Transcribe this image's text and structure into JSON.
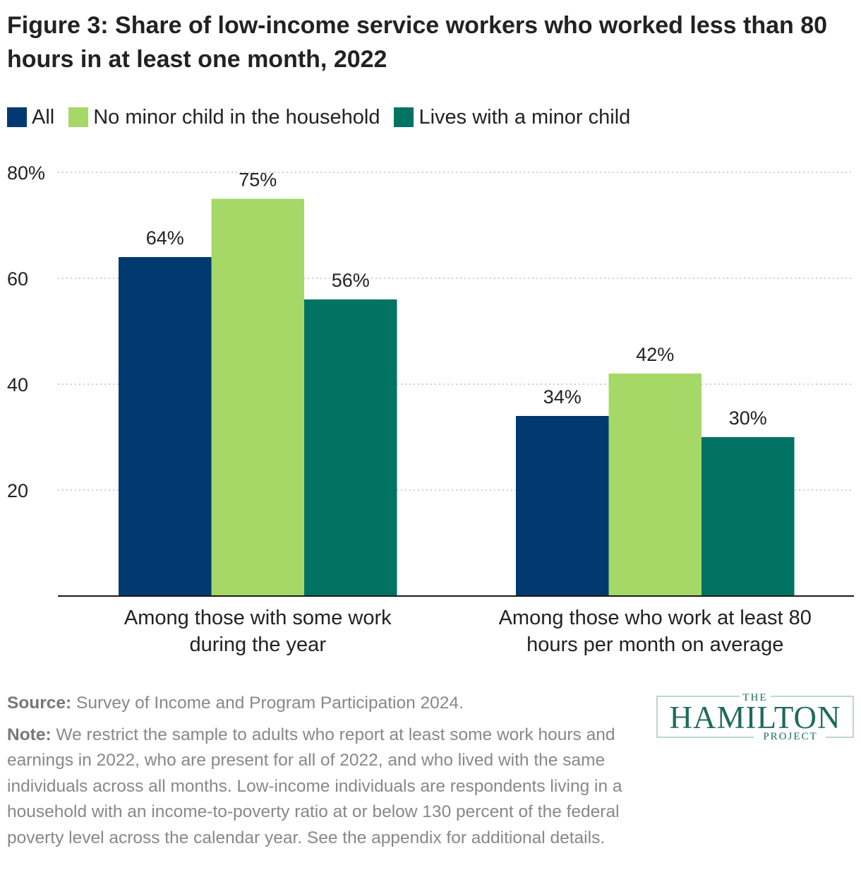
{
  "title": "Figure 3: Share of low-income service workers who worked less than 80 hours in at least one month, 2022",
  "legend": [
    {
      "label": "All",
      "color": "#003a70"
    },
    {
      "label": "No minor child in the household",
      "color": "#a5d867"
    },
    {
      "label": "Lives with a minor child",
      "color": "#007363"
    }
  ],
  "chart_data": {
    "type": "bar",
    "categories": [
      [
        "Among those with some work",
        "during the year"
      ],
      [
        "Among those who work at least 80",
        "hours per month on average"
      ]
    ],
    "series": [
      {
        "name": "All",
        "color": "#003a70",
        "values": [
          64,
          34
        ],
        "labels": [
          "64%",
          "34%"
        ]
      },
      {
        "name": "No minor child in the household",
        "color": "#a5d867",
        "values": [
          75,
          42
        ],
        "labels": [
          "75%",
          "42%"
        ]
      },
      {
        "name": "Lives with a minor child",
        "color": "#007363",
        "values": [
          56,
          30
        ],
        "labels": [
          "56%",
          "30%"
        ]
      }
    ],
    "yticks": [
      {
        "value": 80,
        "label": "80%"
      },
      {
        "value": 60,
        "label": "60"
      },
      {
        "value": 40,
        "label": "40"
      },
      {
        "value": 20,
        "label": "20"
      }
    ],
    "ylim": [
      0,
      80
    ],
    "grid": true,
    "legend_position": "top-left"
  },
  "footer": {
    "source_label": "Source:",
    "source_text": " Survey of Income and Program Participation 2024.",
    "note_label": "Note:",
    "note_text": " We restrict the sample to adults who report at least some work hours and earnings in 2022, who are present for all of 2022, and who lived with the same individuals across all months. Low-income individuals are respondents living in a household with an income-to-poverty ratio at or below 130 percent of the federal poverty level across the calendar year. See the appendix for additional details."
  },
  "logo": {
    "top": "THE",
    "main": "HAMILTON",
    "bottom": "PROJECT",
    "color": "#1f6b5a"
  }
}
